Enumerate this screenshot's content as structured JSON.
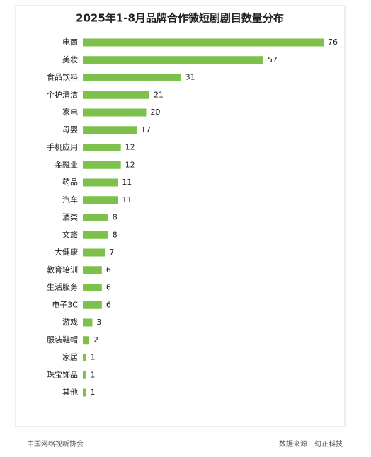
{
  "chart_data": {
    "type": "bar",
    "orientation": "horizontal",
    "title": "2025年1-8月品牌合作微短剧剧目数量分布",
    "categories": [
      "电商",
      "美妆",
      "食品饮料",
      "个护清洁",
      "家电",
      "母婴",
      "手机应用",
      "金融业",
      "药品",
      "汽车",
      "酒类",
      "文旅",
      "大健康",
      "教育培训",
      "生活服务",
      "电子3C",
      "游戏",
      "服装鞋帽",
      "家居",
      "珠宝饰品",
      "其他"
    ],
    "values": [
      76,
      57,
      31,
      21,
      20,
      17,
      12,
      12,
      11,
      11,
      8,
      8,
      7,
      6,
      6,
      6,
      3,
      2,
      1,
      1,
      1
    ],
    "color": "#7dc04b"
  },
  "footer": {
    "left": "中国网络视听协会",
    "right": "数据来源：勾正科技"
  }
}
